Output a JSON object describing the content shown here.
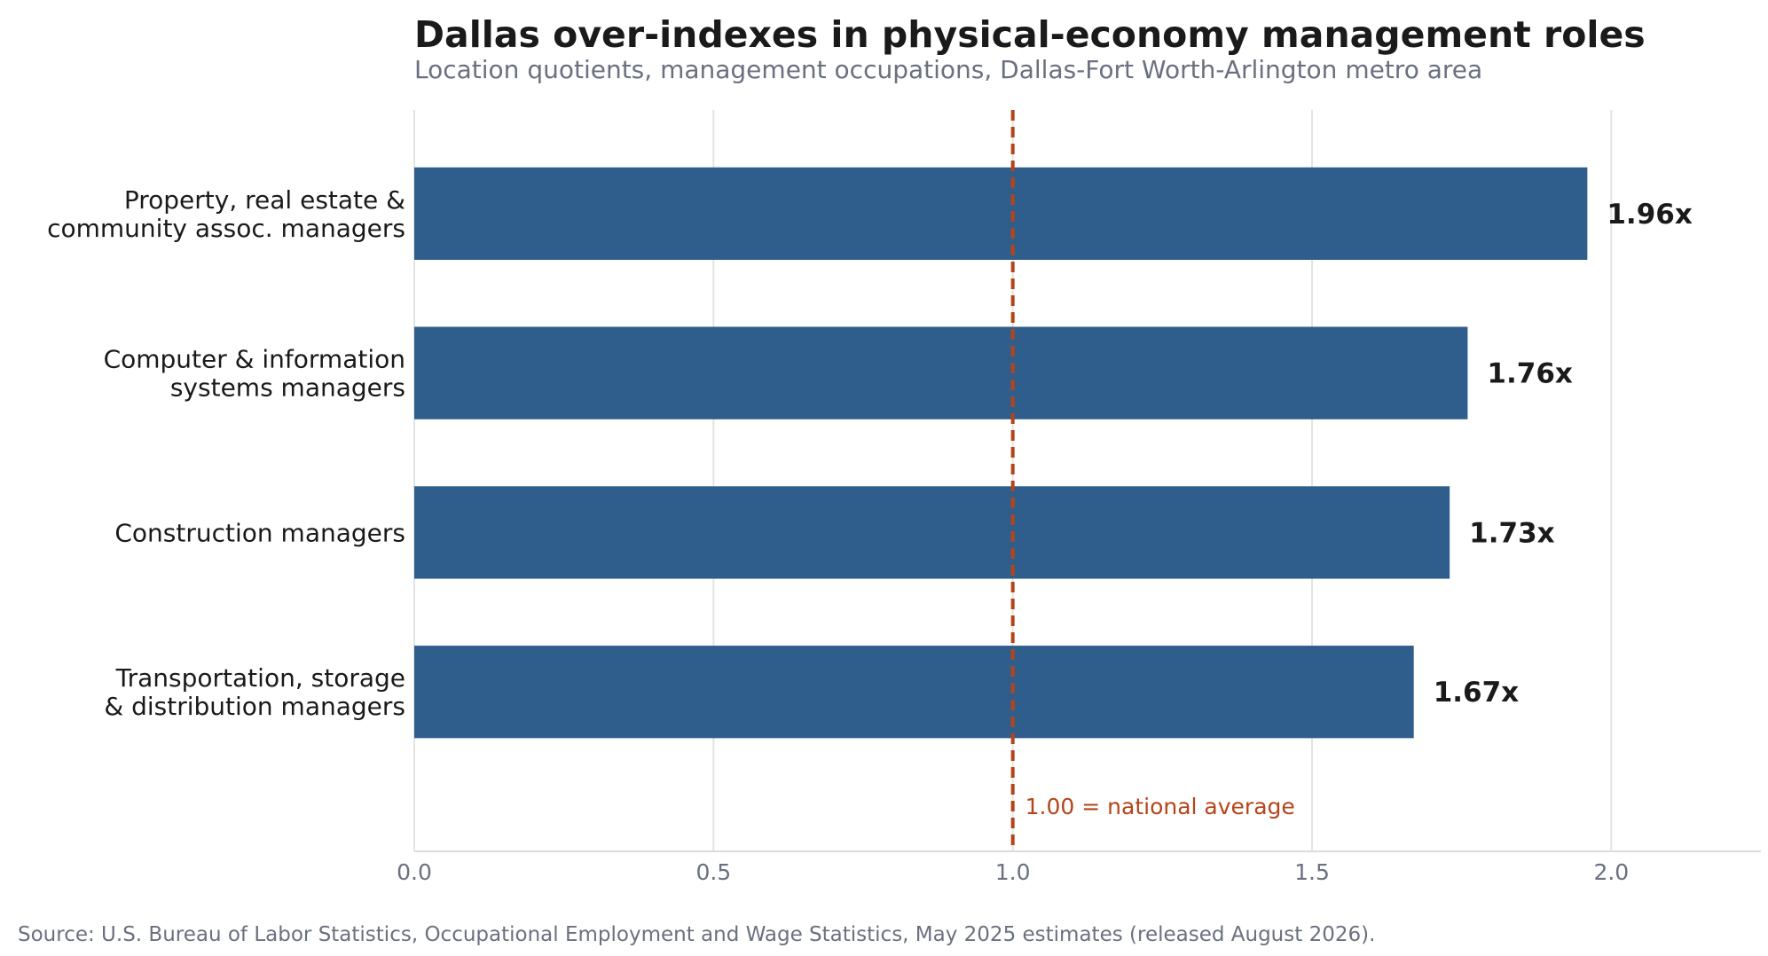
{
  "chart_data": {
    "type": "bar",
    "orientation": "horizontal",
    "title": "Dallas over-indexes in physical-economy management roles",
    "subtitle": "Location quotients, management occupations, Dallas-Fort Worth-Arlington metro area",
    "categories": [
      [
        "Property, real estate &",
        "community assoc. managers"
      ],
      [
        "Computer & information",
        "systems managers"
      ],
      [
        "Construction managers"
      ],
      [
        "Transportation, storage",
        "& distribution managers"
      ]
    ],
    "values": [
      1.96,
      1.76,
      1.73,
      1.67
    ],
    "value_labels": [
      "1.96x",
      "1.76x",
      "1.73x",
      "1.67x"
    ],
    "xlim": [
      0,
      2.25
    ],
    "xticks": [
      0.0,
      0.5,
      1.0,
      1.5,
      2.0
    ],
    "xtick_labels": [
      "0.0",
      "0.5",
      "1.0",
      "1.5",
      "2.0"
    ],
    "reference_line": {
      "value": 1.0,
      "label": "1.00 = national average",
      "color": "#b5441b"
    },
    "bar_color": "#2f5e8c",
    "grid": "vertical",
    "source": "Source: U.S. Bureau of Labor Statistics, Occupational Employment and Wage Statistics, May 2025 estimates (released August 2026)."
  }
}
